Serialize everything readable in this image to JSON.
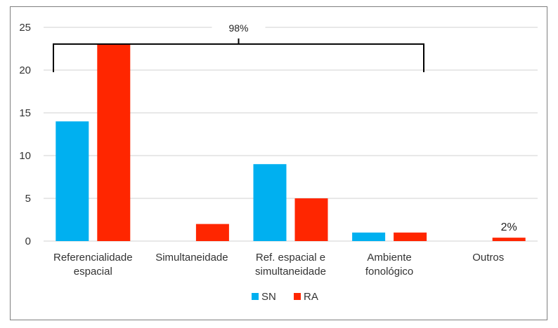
{
  "chart_data": {
    "type": "bar",
    "title": "",
    "xlabel": "",
    "ylabel": "",
    "ylim": [
      0,
      25
    ],
    "yticks": [
      0,
      5,
      10,
      15,
      20,
      25
    ],
    "grid": true,
    "legend_position": "bottom",
    "categories": [
      [
        "Referencialidade",
        "espacial"
      ],
      [
        "Simultaneidade"
      ],
      [
        "Ref. espacial e",
        "simultaneidade"
      ],
      [
        "Ambiente",
        "fonológico"
      ],
      [
        "Outros"
      ]
    ],
    "series": [
      {
        "name": "SN",
        "color": "#00b0f0",
        "values": [
          14,
          0,
          9,
          1,
          0
        ]
      },
      {
        "name": "RA",
        "color": "#ff2600",
        "values": [
          23,
          2,
          5,
          1,
          0.4
        ]
      }
    ],
    "annotations": {
      "bracket_label": "98%",
      "bracket_from_category": 0,
      "bracket_to_category": 3,
      "bracket_level": 23,
      "outros_label": "2%"
    }
  }
}
